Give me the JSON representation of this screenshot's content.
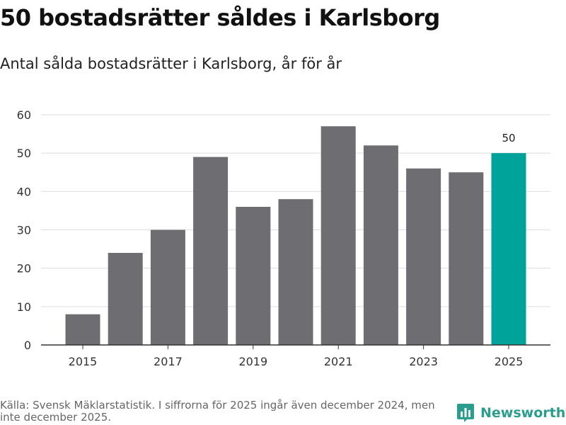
{
  "header": {
    "title": "50 bostadsrätter såldes i Karlsborg",
    "subtitle": "Antal sålda bostadsrätter i Karlsborg, år för år"
  },
  "footer": {
    "source": "Källa: Svensk Mäklarstatistik. I siffrorna för 2025 ingår även december 2024, men inte december 2025."
  },
  "brand": {
    "name": "Newsworthy",
    "logo_icon": "bar-chart-logo-icon"
  },
  "colors": {
    "bar": "#6d6d72",
    "highlight": "#00a39a",
    "grid": "#dddddd",
    "axis": "#333333",
    "brand": "#2a9d8f"
  },
  "chart_data": {
    "type": "bar",
    "title": "Antal sålda bostadsrätter i Karlsborg, år för år",
    "xlabel": "",
    "ylabel": "",
    "categories": [
      "2015",
      "2016",
      "2017",
      "2018",
      "2019",
      "2020",
      "2021",
      "2022",
      "2023",
      "2024",
      "2025"
    ],
    "values": [
      8,
      24,
      30,
      49,
      36,
      38,
      57,
      52,
      46,
      45,
      50
    ],
    "ylim": [
      0,
      60
    ],
    "yticks": [
      "0",
      "10",
      "20",
      "30",
      "40",
      "50",
      "60"
    ],
    "xticks": [
      "2015",
      "2017",
      "2019",
      "2021",
      "2023",
      "2025"
    ],
    "highlight_category": "2025",
    "highlight_label": "50",
    "grid": true
  }
}
